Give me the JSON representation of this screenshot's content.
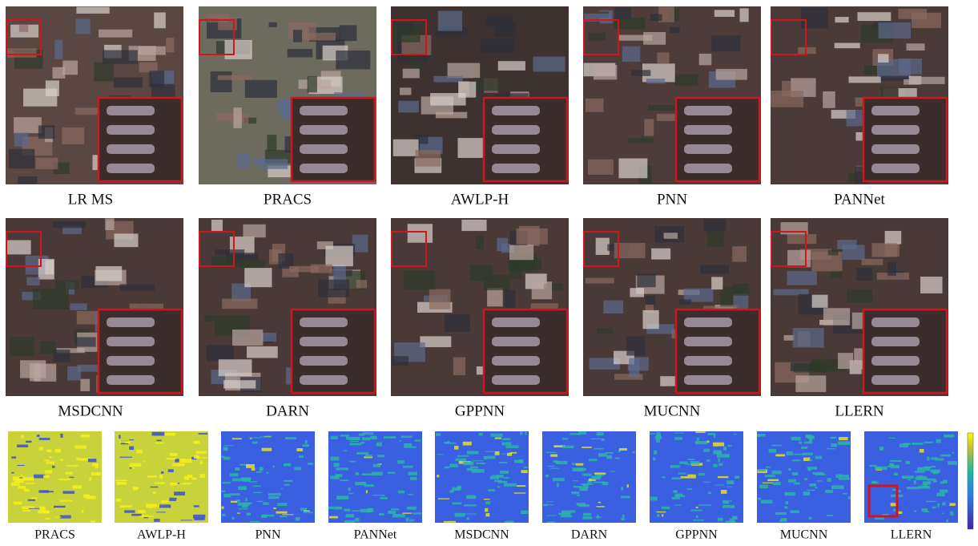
{
  "rows": [
    {
      "labels": [
        "LR MS",
        "PRACS",
        "AWLP-H",
        "PNN",
        "PANNet"
      ]
    },
    {
      "labels": [
        "MSDCNN",
        "DARN",
        "GPPNN",
        "MUCNN",
        "LLERN"
      ]
    }
  ],
  "error_maps": {
    "labels": [
      "PRACS",
      "AWLP-H",
      "PNN",
      "PANNet",
      "MSDCNN",
      "DARN",
      "GPPNN",
      "MUCNN",
      "LLERN"
    ]
  }
}
